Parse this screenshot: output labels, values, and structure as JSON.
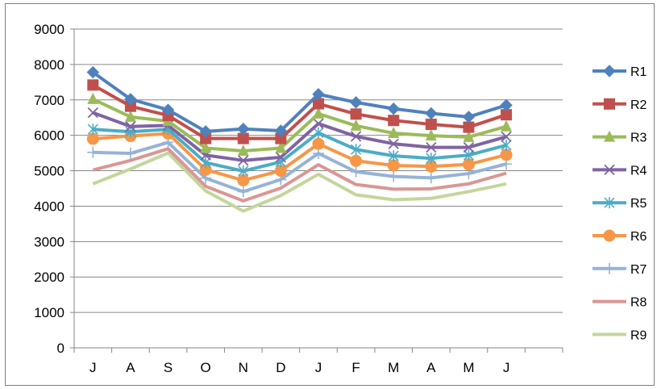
{
  "chart_data": {
    "type": "line",
    "categories": [
      "J",
      "A",
      "S",
      "O",
      "N",
      "D",
      "J",
      "F",
      "M",
      "A",
      "M",
      "J"
    ],
    "ylim": [
      0,
      9000
    ],
    "yticks": [
      "0",
      "1000",
      "2000",
      "3000",
      "4000",
      "5000",
      "6000",
      "7000",
      "8000",
      "9000"
    ],
    "grid": "horizontal",
    "legend_position": "right",
    "series": [
      {
        "name": "R1",
        "color": "#4f81bd",
        "marker": "diamond",
        "values": [
          7780,
          7020,
          6720,
          6110,
          6180,
          6130,
          7160,
          6930,
          6750,
          6620,
          6520,
          6850
        ]
      },
      {
        "name": "R2",
        "color": "#c0504d",
        "marker": "square",
        "values": [
          7420,
          6820,
          6560,
          5910,
          5910,
          5910,
          6890,
          6600,
          6420,
          6310,
          6230,
          6580
        ]
      },
      {
        "name": "R3",
        "color": "#9bbb59",
        "marker": "triangle",
        "values": [
          7020,
          6520,
          6400,
          5640,
          5560,
          5640,
          6610,
          6270,
          6060,
          5990,
          5950,
          6250
        ]
      },
      {
        "name": "R4",
        "color": "#8064a2",
        "marker": "x",
        "values": [
          6640,
          6250,
          6280,
          5440,
          5290,
          5380,
          6330,
          5970,
          5760,
          5660,
          5660,
          5960
        ]
      },
      {
        "name": "R5",
        "color": "#4bacc6",
        "marker": "asterisk",
        "values": [
          6170,
          6100,
          6170,
          5230,
          4990,
          5250,
          6070,
          5600,
          5420,
          5350,
          5440,
          5720
        ]
      },
      {
        "name": "R6",
        "color": "#f79646",
        "marker": "circle",
        "values": [
          5900,
          5980,
          6050,
          5030,
          4730,
          5000,
          5760,
          5280,
          5150,
          5120,
          5180,
          5450
        ]
      },
      {
        "name": "R7",
        "color": "#95b3d7",
        "marker": "plus",
        "values": [
          5520,
          5490,
          5800,
          4790,
          4410,
          4750,
          5490,
          4970,
          4840,
          4800,
          4920,
          5190
        ]
      },
      {
        "name": "R8",
        "color": "#d99694",
        "marker": "none",
        "values": [
          5020,
          5290,
          5620,
          4560,
          4150,
          4510,
          5170,
          4610,
          4480,
          4490,
          4630,
          4930
        ]
      },
      {
        "name": "R9",
        "color": "#c3d69b",
        "marker": "none",
        "values": [
          4630,
          5050,
          5500,
          4430,
          3860,
          4300,
          4900,
          4320,
          4180,
          4220,
          4410,
          4630
        ]
      }
    ]
  }
}
